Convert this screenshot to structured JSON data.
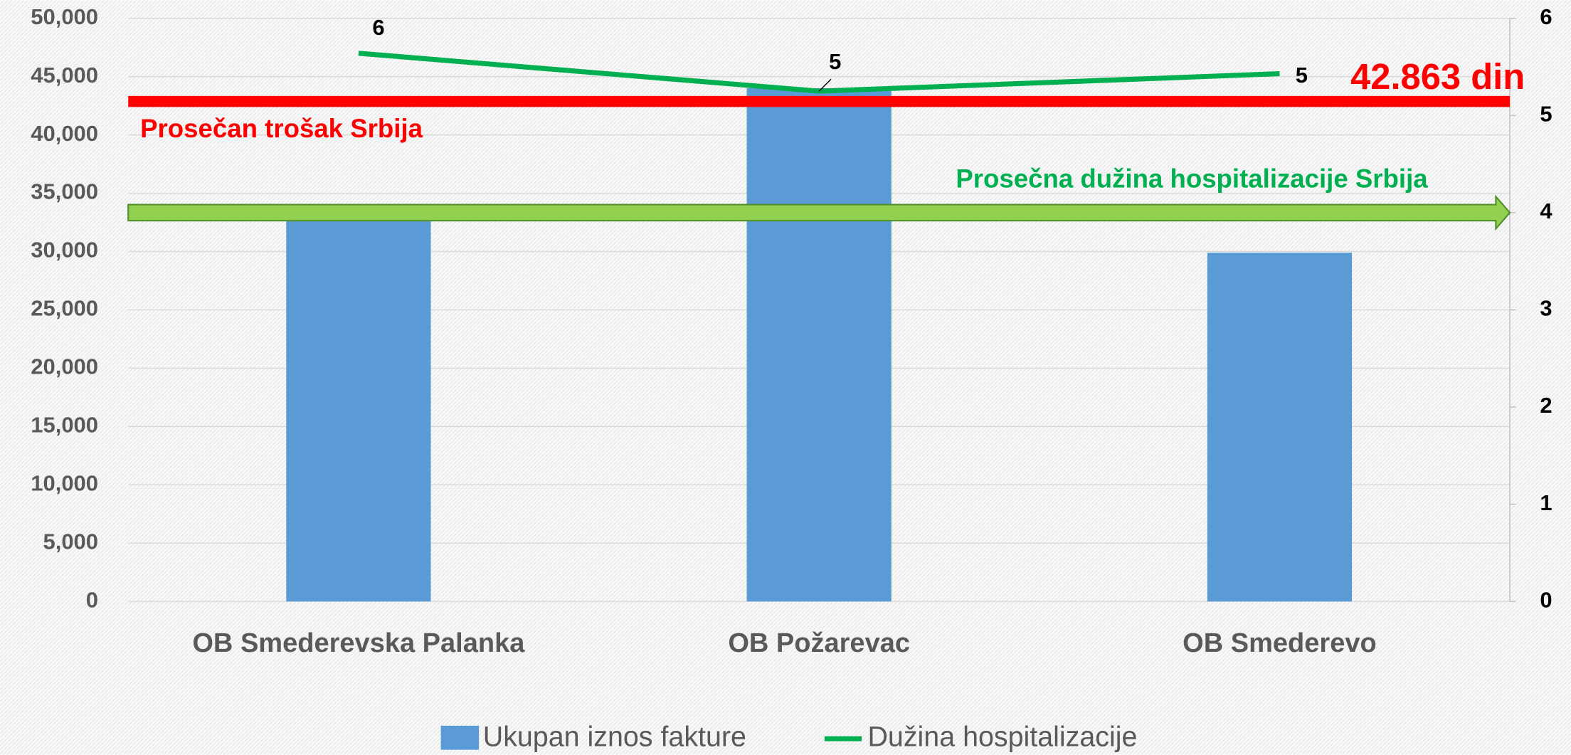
{
  "chart_data": {
    "type": "bar",
    "categories": [
      "OB Smederevska Palanka",
      "OB Požarevac",
      "OB Smederevo"
    ],
    "series": [
      {
        "name": "Ukupan iznos fakture",
        "color": "#5b9bd5",
        "values": [
          32900,
          44000,
          29900
        ]
      },
      {
        "name": "Dužina hospitalizacije",
        "color": "#00b050",
        "type": "line",
        "axis": "y2",
        "values": [
          5.64,
          5.25,
          5.43
        ],
        "value_labels": [
          "6",
          "5",
          "5"
        ]
      }
    ],
    "ylim": [
      0,
      50000
    ],
    "yticks": [
      0,
      {
        "value": 5000,
        "label": "5,000"
      },
      {
        "value": 10000,
        "label": "10,000"
      },
      {
        "value": 15000,
        "label": "15,000"
      },
      {
        "value": 20000,
        "label": "20,000"
      },
      {
        "value": 25000,
        "label": "25,000"
      },
      {
        "value": 30000,
        "label": "30,000"
      },
      {
        "value": 35000,
        "label": "35,000"
      },
      {
        "value": 40000,
        "label": "40,000"
      },
      {
        "value": 45000,
        "label": "45,000"
      },
      {
        "value": 50000,
        "label": "50,000"
      }
    ],
    "y2lim": [
      0,
      6
    ],
    "y2ticks": [
      0,
      1,
      2,
      3,
      4,
      5,
      6
    ],
    "reference_lines": [
      {
        "label": "Prosečan trošak Srbija",
        "value": 42863,
        "value_label": "42.863 din",
        "color": "#ff0000"
      },
      {
        "label": "Prosečna dužina hospitalizacije Srbija",
        "value": 4,
        "axis": "y2",
        "color": "#92d050"
      }
    ],
    "grid": true,
    "legend": "bottom"
  }
}
